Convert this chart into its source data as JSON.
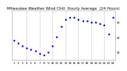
{
  "title": "Milwaukee Weather Wind Chill  Hourly Average  (24 Hours)",
  "hours": [
    1,
    2,
    3,
    4,
    5,
    6,
    7,
    8,
    9,
    10,
    11,
    12,
    13,
    14,
    15,
    16,
    17,
    18,
    19,
    20,
    21,
    22,
    23,
    24
  ],
  "wind_chill": [
    18,
    16,
    14,
    13,
    12,
    11,
    9,
    8,
    10,
    14,
    20,
    27,
    32,
    33,
    33,
    32,
    31,
    31,
    30,
    30,
    29,
    28,
    22,
    33
  ],
  "line_color": "#0000ee",
  "bg_color": "#ffffff",
  "text_color": "#000000",
  "grid_color": "#aaaaaa",
  "ylim": [
    5,
    38
  ],
  "ytick_values": [
    10,
    20,
    30
  ],
  "ytick_labels": [
    "10",
    "20",
    "30"
  ],
  "title_fontsize": 4.0,
  "tick_fontsize": 3.2,
  "vline_positions": [
    4,
    7,
    10,
    13,
    16,
    19,
    22
  ],
  "marker_size": 1.8
}
